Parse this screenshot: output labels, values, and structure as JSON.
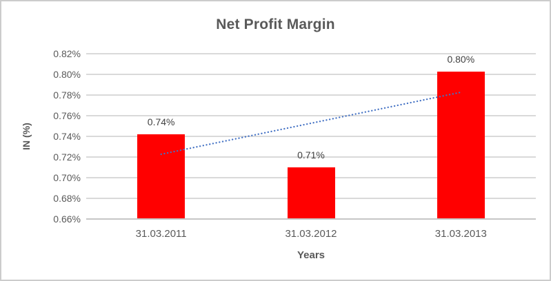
{
  "chart_data": {
    "type": "bar",
    "title": "Net Profit Margin",
    "xlabel": "Years",
    "ylabel": "IN (%)",
    "categories": [
      "31.03.2011",
      "31.03.2012",
      "31.03.2013"
    ],
    "values": [
      0.742,
      0.71,
      0.803
    ],
    "data_labels": [
      "0.74%",
      "0.71%",
      "0.80%"
    ],
    "ylim": [
      0.66,
      0.82
    ],
    "ytick_step": 0.02,
    "yticklabels": [
      "0.66%",
      "0.68%",
      "0.70%",
      "0.72%",
      "0.74%",
      "0.76%",
      "0.78%",
      "0.80%",
      "0.82%"
    ],
    "grid": true,
    "legend": "none",
    "bar_color": "#ff0000",
    "gridline_color": "#d9d9d9",
    "axis_line_color": "#c6c6c6",
    "text_color": "#595959",
    "data_label_color": "#404040",
    "trendline": {
      "type": "linear",
      "style": "dotted",
      "color": "#4472c4",
      "start_value": 0.7227,
      "end_value": 0.7827
    }
  }
}
